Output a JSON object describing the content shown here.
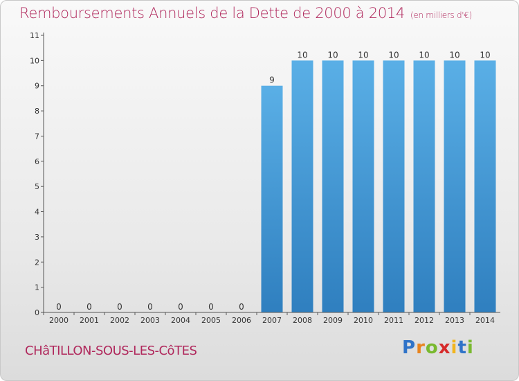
{
  "chart_data": {
    "type": "bar",
    "title": "Remboursements Annuels de la Dette de 2000 à 2014",
    "unit_label": "(en milliers d'€)",
    "categories": [
      "2000",
      "2001",
      "2002",
      "2003",
      "2004",
      "2005",
      "2006",
      "2007",
      "2008",
      "2009",
      "2010",
      "2011",
      "2012",
      "2013",
      "2014"
    ],
    "values": [
      0,
      0,
      0,
      0,
      0,
      0,
      0,
      9,
      10,
      10,
      10,
      10,
      10,
      10,
      10
    ],
    "ylim": [
      0,
      11
    ],
    "yticks": [
      0,
      1,
      2,
      3,
      4,
      5,
      6,
      7,
      8,
      9,
      10,
      11
    ],
    "xlabel": "",
    "ylabel": "",
    "grid": false,
    "colors": {
      "bar_top": "#5aafe6",
      "bar_bottom": "#2f7fbf",
      "axis": "#555555",
      "label": "#333333"
    }
  },
  "footer": {
    "city": "CHâTILLON-SOUS-LES-CôTES",
    "logo_letters": [
      {
        "ch": "P",
        "color": "#2f73c8"
      },
      {
        "ch": "r",
        "color": "#e8841e"
      },
      {
        "ch": "o",
        "color": "#79b92f"
      },
      {
        "ch": "x",
        "color": "#d62a2a"
      },
      {
        "ch": "i",
        "color": "#f2b51d"
      },
      {
        "ch": "t",
        "color": "#2f73c8"
      },
      {
        "ch": "i",
        "color": "#79b92f"
      }
    ]
  }
}
